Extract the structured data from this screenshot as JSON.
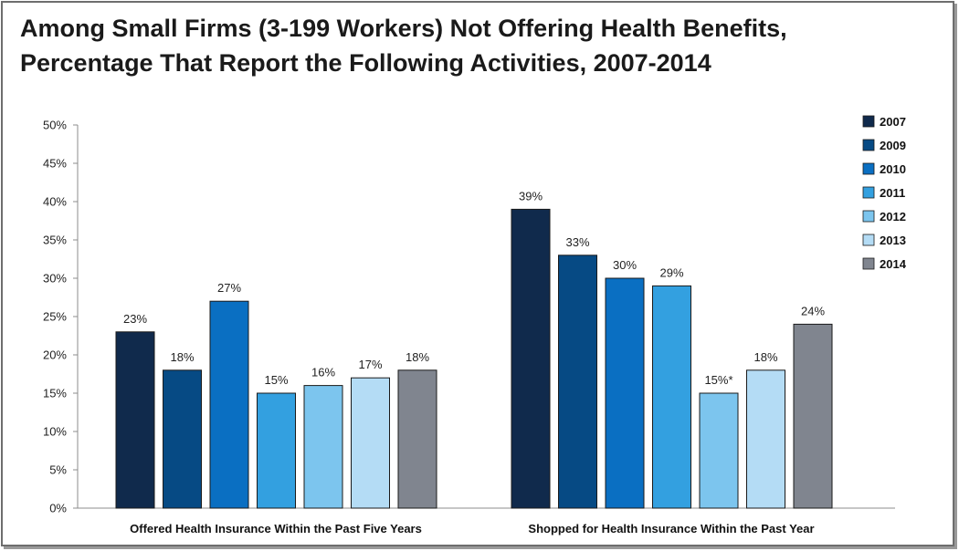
{
  "chart_data": {
    "type": "bar",
    "title": "Among Small Firms (3-199 Workers) Not Offering Health Benefits, Percentage That Report the Following Activities, 2007-2014",
    "title_lines": [
      "Among Small Firms (3-199 Workers) Not Offering Health Benefits,",
      "Percentage That Report the Following Activities, 2007-2014"
    ],
    "categories": [
      "Offered Health Insurance Within the Past Five Years",
      "Shopped for Health Insurance Within the Past Year"
    ],
    "ylim": [
      0,
      50
    ],
    "yticks": [
      0,
      5,
      10,
      15,
      20,
      25,
      30,
      35,
      40,
      45,
      50
    ],
    "ytick_labels": [
      "0%",
      "5%",
      "10%",
      "15%",
      "20%",
      "25%",
      "30%",
      "35%",
      "40%",
      "45%",
      "50%"
    ],
    "grid": false,
    "legend_position": "top-right",
    "series": [
      {
        "name": "2007",
        "color": "#102a4c",
        "values": [
          23,
          39
        ],
        "labels": [
          "23%",
          "39%"
        ]
      },
      {
        "name": "2009",
        "color": "#064a84",
        "values": [
          18,
          33
        ],
        "labels": [
          "18%",
          "33%"
        ]
      },
      {
        "name": "2010",
        "color": "#0a6fc2",
        "values": [
          27,
          30
        ],
        "labels": [
          "27%",
          "30%"
        ]
      },
      {
        "name": "2011",
        "color": "#33a0e0",
        "values": [
          15,
          29
        ],
        "labels": [
          "15%",
          "29%"
        ]
      },
      {
        "name": "2012",
        "color": "#7cc5ee",
        "values": [
          16,
          15
        ],
        "labels": [
          "16%",
          "15%*"
        ]
      },
      {
        "name": "2013",
        "color": "#b4dcf5",
        "values": [
          17,
          18
        ],
        "labels": [
          "17%",
          "18%"
        ]
      },
      {
        "name": "2014",
        "color": "#80858f",
        "values": [
          18,
          24
        ],
        "labels": [
          "18%",
          "24%"
        ]
      }
    ]
  }
}
